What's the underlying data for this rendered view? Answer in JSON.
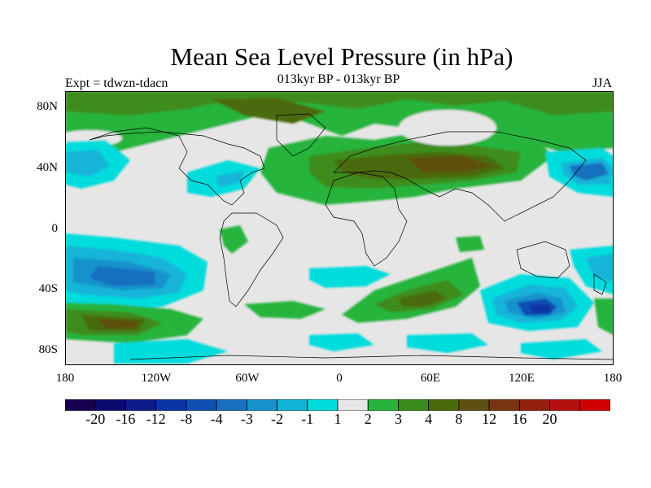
{
  "title": "Mean Sea Level Pressure (in hPa)",
  "subtitle": "013kyr BP - 013kyr BP",
  "left_label": "Expt = tdwzn-tdacn",
  "right_label": "JJA",
  "lat_labels": [
    "80N",
    "40N",
    "0",
    "40S",
    "80S"
  ],
  "lon_labels": [
    "180",
    "120W",
    "60W",
    "0",
    "60E",
    "120E",
    "180"
  ],
  "colorbar": {
    "colors": [
      "#180050",
      "#0a0a6e",
      "#0c1c8c",
      "#0a35a6",
      "#1050b4",
      "#1870c0",
      "#1892cc",
      "#14b4d8",
      "#00dcdc",
      "#e6e6e6",
      "#28b43c",
      "#3c8c1e",
      "#4a6a0c",
      "#5e5010",
      "#7a3410",
      "#962010",
      "#b41010",
      "#d00000"
    ],
    "labels": [
      "-20",
      "-16",
      "-12",
      "-8",
      "-4",
      "-3",
      "-2",
      "-1",
      "1",
      "2",
      "3",
      "4",
      "8",
      "12",
      "16",
      "20"
    ]
  }
}
